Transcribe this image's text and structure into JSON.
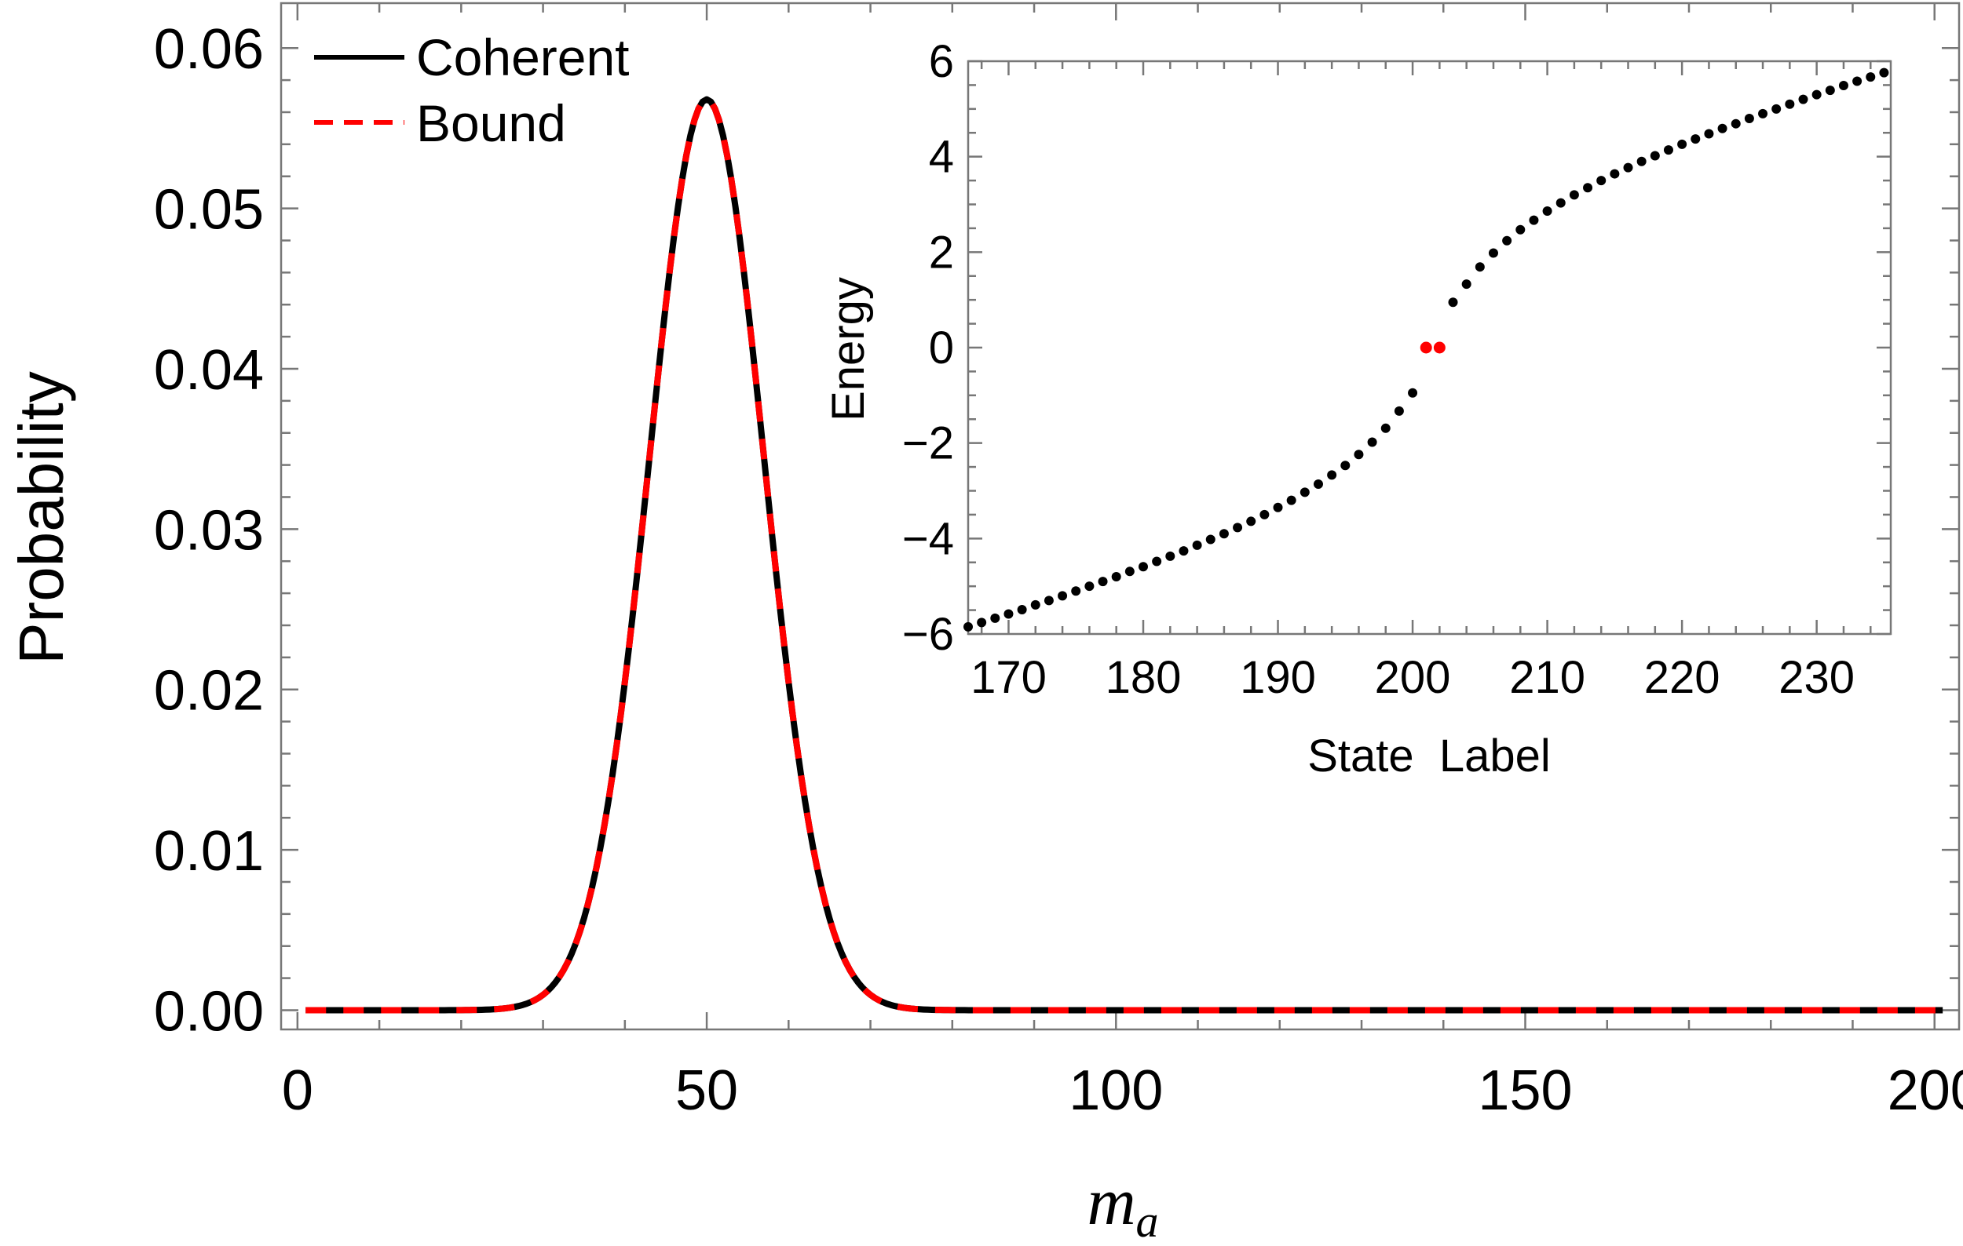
{
  "chart_data": [
    {
      "type": "line",
      "role": "main",
      "xlabel_main": "m",
      "xlabel_sub": "a",
      "ylabel": "Probability",
      "xlim": [
        -2,
        203
      ],
      "ylim": [
        -0.0012,
        0.0628
      ],
      "xticks": [
        0,
        50,
        100,
        150,
        200
      ],
      "xtick_labels": [
        "0",
        "50",
        "100",
        "150",
        "200"
      ],
      "yticks": [
        0.0,
        0.01,
        0.02,
        0.03,
        0.04,
        0.05,
        0.06
      ],
      "ytick_labels": [
        "0.00",
        "0.01",
        "0.02",
        "0.03",
        "0.04",
        "0.05",
        "0.06"
      ],
      "distribution": {
        "form": "gaussian",
        "x_min": 1,
        "x_max": 201,
        "peak_x": 50,
        "peak_y": 0.0568,
        "sigma": 7.0
      },
      "series": [
        {
          "name": "Coherent",
          "color": "#000000",
          "style": "solid"
        },
        {
          "name": "Bound",
          "color": "#ff0000",
          "style": "dashed"
        }
      ],
      "legend": {
        "position": "top-left",
        "entries": [
          "Coherent",
          "Bound"
        ]
      }
    },
    {
      "type": "scatter",
      "role": "inset",
      "xlabel": "State  Label",
      "ylabel": "Energy",
      "xlim": [
        167,
        235.5
      ],
      "ylim": [
        -6,
        6
      ],
      "xticks": [
        170,
        180,
        190,
        200,
        210,
        220,
        230
      ],
      "xtick_labels": [
        "170",
        "180",
        "190",
        "200",
        "210",
        "220",
        "230"
      ],
      "yticks": [
        -6,
        -4,
        -2,
        0,
        2,
        4,
        6
      ],
      "ytick_labels": [
        "−6",
        "−4",
        "−2",
        "0",
        "2",
        "4",
        "6"
      ],
      "points_black": {
        "x": [
          167,
          168,
          169,
          170,
          171,
          172,
          173,
          174,
          175,
          176,
          177,
          178,
          179,
          180,
          181,
          182,
          183,
          184,
          185,
          186,
          187,
          188,
          189,
          190,
          191,
          192,
          193,
          194,
          195,
          196,
          197,
          198,
          199,
          200,
          203,
          204,
          205,
          206,
          207,
          208,
          209,
          210,
          211,
          212,
          213,
          214,
          215,
          216,
          217,
          218,
          219,
          220,
          221,
          222,
          223,
          224,
          225,
          226,
          227,
          228,
          229,
          230,
          231,
          232,
          233,
          234,
          235
        ],
        "y": [
          -5.85,
          -5.76,
          -5.67,
          -5.58,
          -5.49,
          -5.39,
          -5.3,
          -5.2,
          -5.1,
          -5.0,
          -4.9,
          -4.8,
          -4.69,
          -4.59,
          -4.48,
          -4.37,
          -4.26,
          -4.14,
          -4.02,
          -3.9,
          -3.77,
          -3.64,
          -3.5,
          -3.35,
          -3.2,
          -3.03,
          -2.86,
          -2.67,
          -2.47,
          -2.24,
          -1.98,
          -1.69,
          -1.33,
          -0.95,
          0.95,
          1.33,
          1.69,
          1.98,
          2.24,
          2.47,
          2.67,
          2.86,
          3.03,
          3.2,
          3.35,
          3.5,
          3.64,
          3.77,
          3.9,
          4.02,
          4.14,
          4.26,
          4.37,
          4.48,
          4.59,
          4.69,
          4.8,
          4.9,
          5.0,
          5.1,
          5.2,
          5.3,
          5.39,
          5.49,
          5.58,
          5.67,
          5.76
        ]
      },
      "points_red": {
        "x": [
          201,
          202
        ],
        "y": [
          0.0,
          0.0
        ]
      },
      "colors": {
        "black": "#000000",
        "red": "#ff0000"
      }
    }
  ]
}
